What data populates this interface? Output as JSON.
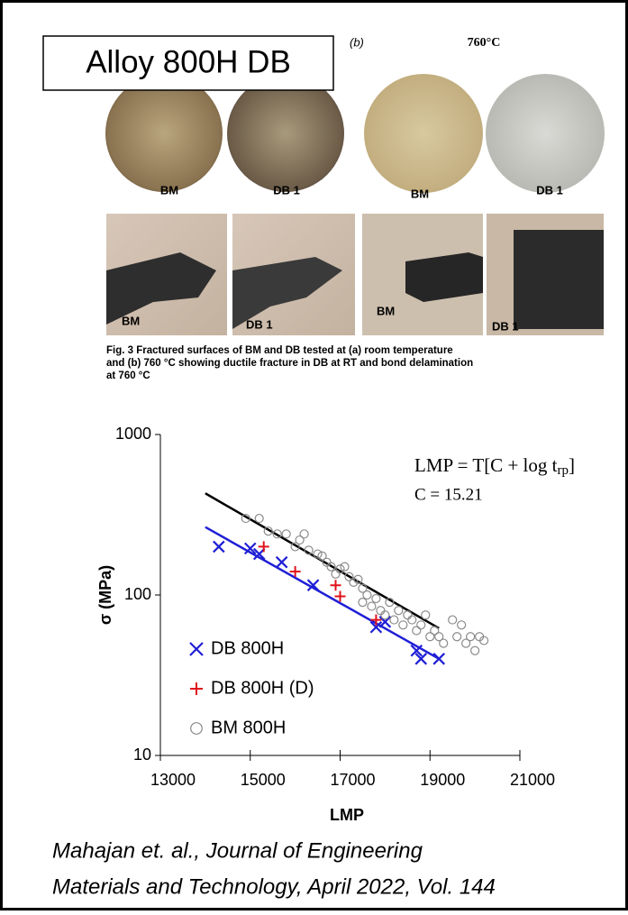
{
  "header": {
    "title": "Alloy 800H DB"
  },
  "figure": {
    "panel_label": "(b)",
    "temperature": "760°C",
    "top_labels": [
      "BM",
      "DB 1",
      "BM",
      "DB 1"
    ],
    "bottom_labels": [
      "BM",
      "DB 1",
      "BM",
      "DB 1"
    ],
    "caption": [
      "Fig. 3   Fractured surfaces of BM and DB tested at (a) room temperature",
      "and (b) 760 °C showing ductile fracture in DB at RT and bond delamination",
      "at 760 °C"
    ]
  },
  "chart_data": {
    "type": "scatter",
    "xlabel": "LMP",
    "ylabel": "σ (MPa)",
    "xlim": [
      13000,
      21000
    ],
    "xticks": [
      13000,
      15000,
      17000,
      19000,
      21000
    ],
    "ylim": [
      10,
      1000
    ],
    "yticks": [
      10,
      100,
      1000
    ],
    "log_y": true,
    "equation": {
      "main": "LMP = T[C + log t",
      "sub": "rp",
      "end": "]"
    },
    "constant": "C = 15.21",
    "series": [
      {
        "name": "DB 800H",
        "color": "#1f1fd6",
        "marker": "x",
        "x": [
          14300,
          15000,
          15200,
          15700,
          16400,
          17800,
          18000,
          18700,
          18800,
          19200
        ],
        "values": [
          200,
          195,
          180,
          160,
          115,
          63,
          68,
          45,
          40,
          40
        ]
      },
      {
        "name": "DB 800H (D)",
        "color": "#e0131b",
        "marker": "+",
        "x": [
          15300,
          16000,
          16900,
          17000,
          17800
        ],
        "values": [
          200,
          140,
          115,
          98,
          70
        ]
      },
      {
        "name": "BM 800H",
        "color": "#8a8a8a",
        "marker": "o",
        "x": [
          14900,
          15200,
          15400,
          15600,
          15800,
          16000,
          16100,
          16200,
          16300,
          16500,
          16600,
          16700,
          16800,
          16900,
          17000,
          17100,
          17200,
          17300,
          17400,
          17500,
          17500,
          17600,
          17700,
          17800,
          17900,
          18000,
          18100,
          18200,
          18300,
          18400,
          18500,
          18600,
          18700,
          18800,
          18900,
          19000,
          19100,
          19200,
          19300,
          19500,
          19600,
          19700,
          19800,
          19900,
          20000,
          20100,
          20200
        ],
        "values": [
          300,
          300,
          250,
          240,
          240,
          200,
          220,
          240,
          190,
          180,
          175,
          160,
          150,
          135,
          145,
          150,
          130,
          120,
          125,
          110,
          90,
          100,
          85,
          95,
          80,
          75,
          90,
          70,
          80,
          65,
          75,
          70,
          60,
          65,
          75,
          55,
          60,
          55,
          50,
          70,
          55,
          65,
          50,
          55,
          45,
          55,
          52
        ]
      }
    ],
    "fit_lines": [
      {
        "color": "#000000",
        "x": [
          14000,
          19200
        ],
        "values": [
          430,
          62
        ]
      },
      {
        "color": "#1f1fd6",
        "x": [
          14000,
          19200
        ],
        "values": [
          265,
          40
        ]
      }
    ]
  },
  "citation": [
    "Mahajan et. al., Journal of Engineering",
    "Materials and Technology, April 2022, Vol. 144"
  ]
}
